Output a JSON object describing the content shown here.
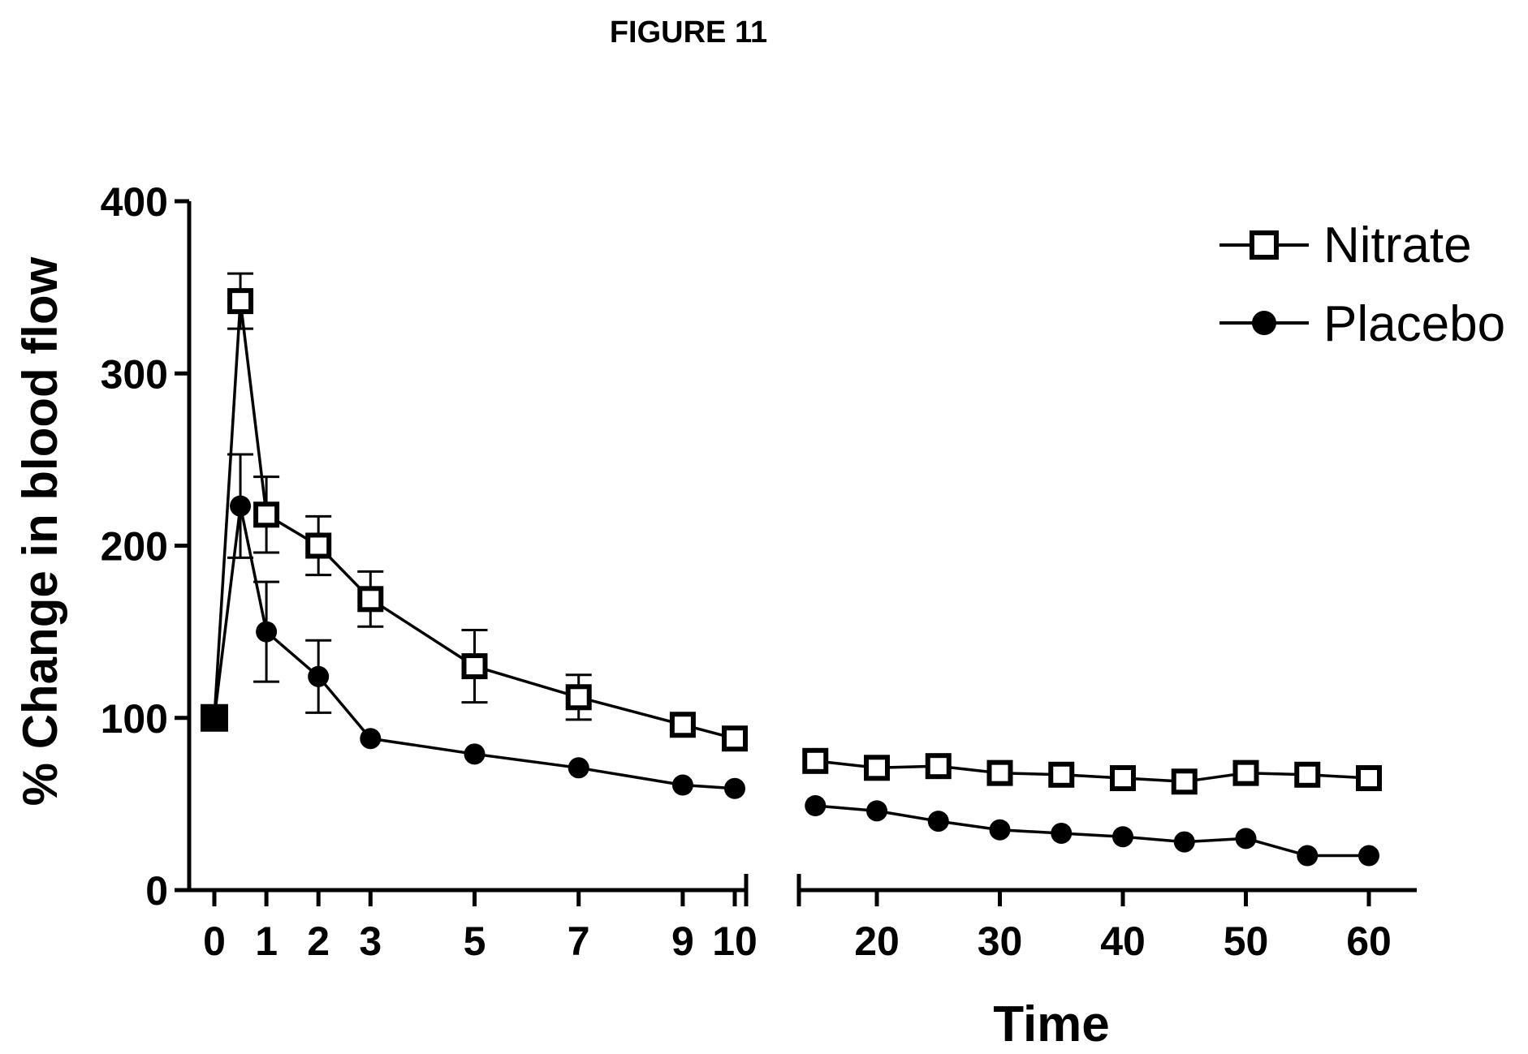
{
  "figure_label": "FIGURE 11",
  "chart_data": {
    "type": "line",
    "title": "",
    "xlabel": "Time",
    "ylabel": "% Change in blood flow",
    "ylim": [
      0,
      400
    ],
    "y_ticks": [
      0,
      100,
      200,
      300,
      400
    ],
    "x_axis_broken": true,
    "x_segments": [
      {
        "range": [
          -0.5,
          10.2
        ],
        "ticks": [
          0,
          1,
          2,
          3,
          5,
          7,
          9,
          10
        ]
      },
      {
        "range": [
          14.9,
          60
        ],
        "ticks": [
          20,
          30,
          40,
          50,
          60
        ]
      }
    ],
    "legend_position": "top-right",
    "grid": false,
    "series": [
      {
        "name": "Nitrate",
        "marker": "open-square",
        "points": [
          {
            "x": 0,
            "y": 100
          },
          {
            "x": 0.5,
            "y": 342,
            "err": 16
          },
          {
            "x": 1,
            "y": 218,
            "err": 22
          },
          {
            "x": 2,
            "y": 200,
            "err": 17
          },
          {
            "x": 3,
            "y": 169,
            "err": 16
          },
          {
            "x": 5,
            "y": 130,
            "err": 21
          },
          {
            "x": 7,
            "y": 112,
            "err": 13
          },
          {
            "x": 9,
            "y": 96
          },
          {
            "x": 10,
            "y": 88
          },
          {
            "x": 15,
            "y": 75
          },
          {
            "x": 20,
            "y": 71
          },
          {
            "x": 25,
            "y": 72
          },
          {
            "x": 30,
            "y": 68
          },
          {
            "x": 35,
            "y": 67
          },
          {
            "x": 40,
            "y": 65
          },
          {
            "x": 45,
            "y": 63
          },
          {
            "x": 50,
            "y": 68
          },
          {
            "x": 55,
            "y": 67
          },
          {
            "x": 60,
            "y": 65
          }
        ]
      },
      {
        "name": "Placebo",
        "marker": "filled-circle",
        "points": [
          {
            "x": 0,
            "y": 100
          },
          {
            "x": 0.5,
            "y": 223,
            "err": 30
          },
          {
            "x": 1,
            "y": 150,
            "err": 29
          },
          {
            "x": 2,
            "y": 124,
            "err": 21
          },
          {
            "x": 3,
            "y": 88
          },
          {
            "x": 5,
            "y": 79
          },
          {
            "x": 7,
            "y": 71
          },
          {
            "x": 9,
            "y": 61
          },
          {
            "x": 10,
            "y": 59
          },
          {
            "x": 15,
            "y": 49
          },
          {
            "x": 20,
            "y": 46
          },
          {
            "x": 25,
            "y": 40
          },
          {
            "x": 30,
            "y": 35
          },
          {
            "x": 35,
            "y": 33
          },
          {
            "x": 40,
            "y": 31
          },
          {
            "x": 45,
            "y": 28
          },
          {
            "x": 50,
            "y": 30
          },
          {
            "x": 55,
            "y": 20
          },
          {
            "x": 60,
            "y": 20
          }
        ]
      }
    ]
  }
}
